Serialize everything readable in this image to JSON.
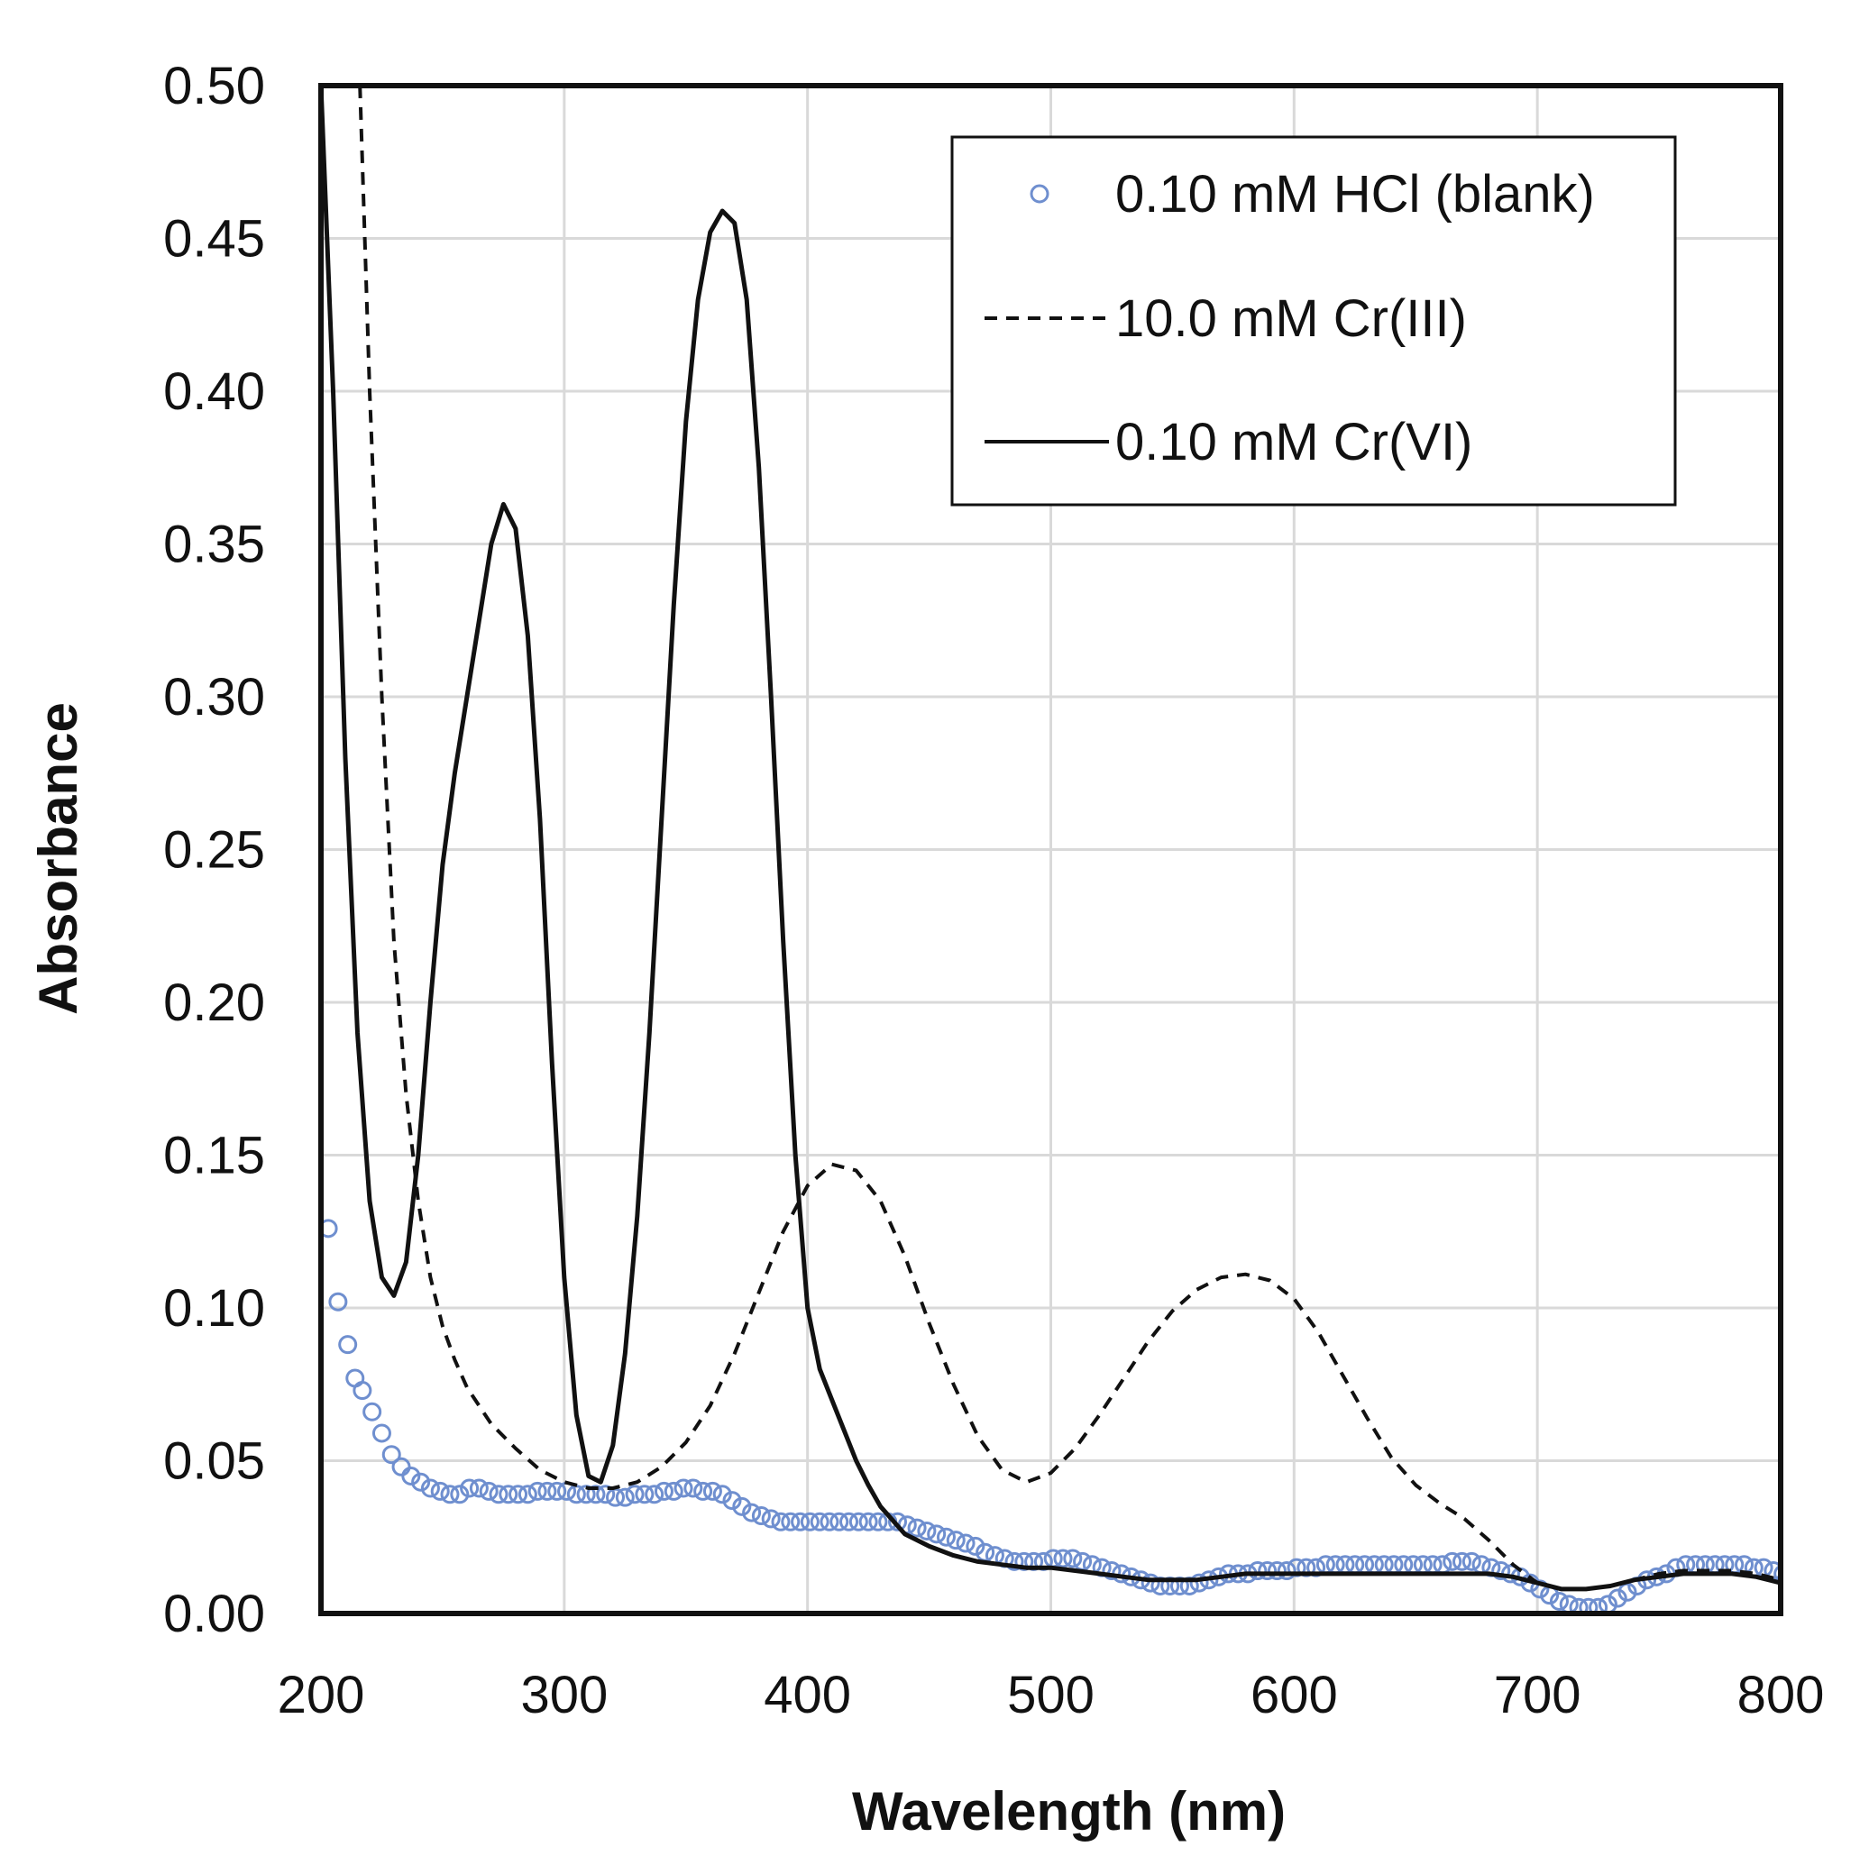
{
  "chart_data": {
    "type": "line",
    "title": "",
    "xlabel": "Wavelength (nm)",
    "ylabel": "Absorbance",
    "xlim": [
      200,
      800
    ],
    "ylim": [
      0,
      0.5
    ],
    "x_ticks": [
      200,
      300,
      400,
      500,
      600,
      700,
      800
    ],
    "y_ticks": [
      0,
      0.05,
      0.1,
      0.15,
      0.2,
      0.25,
      0.3,
      0.35,
      0.4,
      0.45,
      0.5
    ],
    "x_tick_labels": [
      "200",
      "300",
      "400",
      "500",
      "600",
      "700",
      "800"
    ],
    "y_tick_labels": [
      "0.00",
      "0.05",
      "0.10",
      "0.15",
      "0.20",
      "0.25",
      "0.30",
      "0.35",
      "0.40",
      "0.45",
      "0.50"
    ],
    "grid": true,
    "legend_position": "top-right",
    "series": [
      {
        "name": "0.10 mM HCl (blank)",
        "style": "markers",
        "marker": "open-circle",
        "color": "#6f8fcf",
        "points": [
          [
            203,
            0.126
          ],
          [
            207,
            0.102
          ],
          [
            211,
            0.088
          ],
          [
            214,
            0.077
          ],
          [
            217,
            0.073
          ],
          [
            221,
            0.066
          ],
          [
            225,
            0.059
          ],
          [
            229,
            0.052
          ],
          [
            233,
            0.048
          ],
          [
            237,
            0.045
          ],
          [
            241,
            0.043
          ],
          [
            245,
            0.041
          ],
          [
            249,
            0.04
          ],
          [
            253,
            0.039
          ],
          [
            257,
            0.039
          ],
          [
            261,
            0.041
          ],
          [
            265,
            0.041
          ],
          [
            269,
            0.04
          ],
          [
            273,
            0.039
          ],
          [
            277,
            0.039
          ],
          [
            281,
            0.039
          ],
          [
            285,
            0.039
          ],
          [
            289,
            0.04
          ],
          [
            293,
            0.04
          ],
          [
            297,
            0.04
          ],
          [
            301,
            0.04
          ],
          [
            305,
            0.039
          ],
          [
            309,
            0.039
          ],
          [
            313,
            0.039
          ],
          [
            317,
            0.039
          ],
          [
            321,
            0.038
          ],
          [
            325,
            0.038
          ],
          [
            329,
            0.039
          ],
          [
            333,
            0.039
          ],
          [
            337,
            0.039
          ],
          [
            341,
            0.04
          ],
          [
            345,
            0.04
          ],
          [
            349,
            0.041
          ],
          [
            353,
            0.041
          ],
          [
            357,
            0.04
          ],
          [
            361,
            0.04
          ],
          [
            365,
            0.039
          ],
          [
            369,
            0.037
          ],
          [
            373,
            0.035
          ],
          [
            377,
            0.033
          ],
          [
            381,
            0.032
          ],
          [
            385,
            0.031
          ],
          [
            389,
            0.03
          ],
          [
            393,
            0.03
          ],
          [
            397,
            0.03
          ],
          [
            401,
            0.03
          ],
          [
            405,
            0.03
          ],
          [
            409,
            0.03
          ],
          [
            413,
            0.03
          ],
          [
            417,
            0.03
          ],
          [
            421,
            0.03
          ],
          [
            425,
            0.03
          ],
          [
            429,
            0.03
          ],
          [
            433,
            0.03
          ],
          [
            437,
            0.03
          ],
          [
            441,
            0.029
          ],
          [
            445,
            0.028
          ],
          [
            449,
            0.027
          ],
          [
            453,
            0.026
          ],
          [
            457,
            0.025
          ],
          [
            461,
            0.024
          ],
          [
            465,
            0.023
          ],
          [
            469,
            0.022
          ],
          [
            473,
            0.02
          ],
          [
            477,
            0.019
          ],
          [
            481,
            0.018
          ],
          [
            485,
            0.017
          ],
          [
            489,
            0.017
          ],
          [
            493,
            0.017
          ],
          [
            497,
            0.017
          ],
          [
            501,
            0.018
          ],
          [
            505,
            0.018
          ],
          [
            509,
            0.018
          ],
          [
            513,
            0.017
          ],
          [
            517,
            0.016
          ],
          [
            521,
            0.015
          ],
          [
            525,
            0.014
          ],
          [
            529,
            0.013
          ],
          [
            533,
            0.012
          ],
          [
            537,
            0.011
          ],
          [
            541,
            0.01
          ],
          [
            545,
            0.009
          ],
          [
            549,
            0.009
          ],
          [
            553,
            0.009
          ],
          [
            557,
            0.009
          ],
          [
            561,
            0.01
          ],
          [
            565,
            0.011
          ],
          [
            569,
            0.012
          ],
          [
            573,
            0.013
          ],
          [
            577,
            0.013
          ],
          [
            581,
            0.013
          ],
          [
            585,
            0.014
          ],
          [
            589,
            0.014
          ],
          [
            593,
            0.014
          ],
          [
            597,
            0.014
          ],
          [
            601,
            0.015
          ],
          [
            605,
            0.015
          ],
          [
            609,
            0.015
          ],
          [
            613,
            0.016
          ],
          [
            617,
            0.016
          ],
          [
            621,
            0.016
          ],
          [
            625,
            0.016
          ],
          [
            629,
            0.016
          ],
          [
            633,
            0.016
          ],
          [
            637,
            0.016
          ],
          [
            641,
            0.016
          ],
          [
            645,
            0.016
          ],
          [
            649,
            0.016
          ],
          [
            653,
            0.016
          ],
          [
            657,
            0.016
          ],
          [
            661,
            0.016
          ],
          [
            665,
            0.017
          ],
          [
            669,
            0.017
          ],
          [
            673,
            0.017
          ],
          [
            677,
            0.016
          ],
          [
            681,
            0.015
          ],
          [
            685,
            0.014
          ],
          [
            689,
            0.013
          ],
          [
            693,
            0.012
          ],
          [
            697,
            0.01
          ],
          [
            701,
            0.008
          ],
          [
            705,
            0.006
          ],
          [
            709,
            0.004
          ],
          [
            713,
            0.003
          ],
          [
            717,
            0.002
          ],
          [
            721,
            0.002
          ],
          [
            725,
            0.002
          ],
          [
            729,
            0.003
          ],
          [
            733,
            0.005
          ],
          [
            737,
            0.007
          ],
          [
            741,
            0.009
          ],
          [
            745,
            0.011
          ],
          [
            749,
            0.012
          ],
          [
            753,
            0.013
          ],
          [
            757,
            0.015
          ],
          [
            761,
            0.016
          ],
          [
            765,
            0.016
          ],
          [
            769,
            0.016
          ],
          [
            773,
            0.016
          ],
          [
            777,
            0.016
          ],
          [
            781,
            0.016
          ],
          [
            785,
            0.016
          ],
          [
            789,
            0.015
          ],
          [
            793,
            0.015
          ],
          [
            797,
            0.014
          ],
          [
            801,
            0.013
          ]
        ]
      },
      {
        "name": "10.0 mM Cr(III)",
        "style": "dashed",
        "color": "#111111",
        "points": [
          [
            216,
            0.5
          ],
          [
            220,
            0.4
          ],
          [
            225,
            0.3
          ],
          [
            230,
            0.22
          ],
          [
            235,
            0.17
          ],
          [
            240,
            0.135
          ],
          [
            245,
            0.11
          ],
          [
            250,
            0.094
          ],
          [
            255,
            0.083
          ],
          [
            260,
            0.074
          ],
          [
            270,
            0.062
          ],
          [
            280,
            0.054
          ],
          [
            290,
            0.047
          ],
          [
            300,
            0.043
          ],
          [
            310,
            0.041
          ],
          [
            320,
            0.041
          ],
          [
            330,
            0.043
          ],
          [
            340,
            0.048
          ],
          [
            350,
            0.056
          ],
          [
            360,
            0.068
          ],
          [
            370,
            0.085
          ],
          [
            380,
            0.105
          ],
          [
            390,
            0.125
          ],
          [
            400,
            0.14
          ],
          [
            410,
            0.147
          ],
          [
            420,
            0.145
          ],
          [
            430,
            0.135
          ],
          [
            440,
            0.117
          ],
          [
            450,
            0.095
          ],
          [
            460,
            0.075
          ],
          [
            470,
            0.058
          ],
          [
            480,
            0.047
          ],
          [
            490,
            0.043
          ],
          [
            500,
            0.046
          ],
          [
            510,
            0.054
          ],
          [
            520,
            0.065
          ],
          [
            530,
            0.077
          ],
          [
            540,
            0.089
          ],
          [
            550,
            0.099
          ],
          [
            560,
            0.106
          ],
          [
            570,
            0.11
          ],
          [
            580,
            0.111
          ],
          [
            590,
            0.109
          ],
          [
            600,
            0.103
          ],
          [
            610,
            0.092
          ],
          [
            620,
            0.078
          ],
          [
            630,
            0.064
          ],
          [
            640,
            0.051
          ],
          [
            650,
            0.042
          ],
          [
            660,
            0.036
          ],
          [
            670,
            0.031
          ],
          [
            680,
            0.024
          ],
          [
            690,
            0.016
          ],
          [
            700,
            0.01
          ],
          [
            710,
            0.008
          ],
          [
            720,
            0.008
          ],
          [
            730,
            0.009
          ],
          [
            740,
            0.011
          ],
          [
            750,
            0.013
          ],
          [
            760,
            0.014
          ],
          [
            770,
            0.014
          ],
          [
            780,
            0.014
          ],
          [
            790,
            0.013
          ],
          [
            800,
            0.011
          ]
        ]
      },
      {
        "name": "0.10 mM Cr(VI)",
        "style": "solid",
        "color": "#111111",
        "points": [
          [
            200,
            0.5
          ],
          [
            205,
            0.4
          ],
          [
            210,
            0.28
          ],
          [
            215,
            0.19
          ],
          [
            220,
            0.135
          ],
          [
            225,
            0.11
          ],
          [
            230,
            0.104
          ],
          [
            235,
            0.115
          ],
          [
            240,
            0.15
          ],
          [
            245,
            0.2
          ],
          [
            250,
            0.245
          ],
          [
            255,
            0.275
          ],
          [
            260,
            0.3
          ],
          [
            265,
            0.325
          ],
          [
            270,
            0.35
          ],
          [
            275,
            0.363
          ],
          [
            280,
            0.355
          ],
          [
            285,
            0.32
          ],
          [
            290,
            0.26
          ],
          [
            295,
            0.18
          ],
          [
            300,
            0.11
          ],
          [
            305,
            0.065
          ],
          [
            310,
            0.045
          ],
          [
            315,
            0.043
          ],
          [
            320,
            0.055
          ],
          [
            325,
            0.085
          ],
          [
            330,
            0.13
          ],
          [
            335,
            0.19
          ],
          [
            340,
            0.26
          ],
          [
            345,
            0.33
          ],
          [
            350,
            0.39
          ],
          [
            355,
            0.43
          ],
          [
            360,
            0.452
          ],
          [
            365,
            0.459
          ],
          [
            370,
            0.455
          ],
          [
            375,
            0.43
          ],
          [
            380,
            0.375
          ],
          [
            385,
            0.3
          ],
          [
            390,
            0.22
          ],
          [
            395,
            0.15
          ],
          [
            400,
            0.1
          ],
          [
            405,
            0.08
          ],
          [
            410,
            0.07
          ],
          [
            415,
            0.06
          ],
          [
            420,
            0.05
          ],
          [
            425,
            0.042
          ],
          [
            430,
            0.035
          ],
          [
            440,
            0.026
          ],
          [
            450,
            0.022
          ],
          [
            460,
            0.019
          ],
          [
            470,
            0.017
          ],
          [
            480,
            0.016
          ],
          [
            490,
            0.015
          ],
          [
            500,
            0.015
          ],
          [
            510,
            0.014
          ],
          [
            520,
            0.013
          ],
          [
            530,
            0.012
          ],
          [
            540,
            0.011
          ],
          [
            550,
            0.011
          ],
          [
            560,
            0.011
          ],
          [
            570,
            0.012
          ],
          [
            580,
            0.013
          ],
          [
            590,
            0.013
          ],
          [
            600,
            0.013
          ],
          [
            620,
            0.013
          ],
          [
            640,
            0.013
          ],
          [
            660,
            0.013
          ],
          [
            680,
            0.013
          ],
          [
            690,
            0.012
          ],
          [
            700,
            0.01
          ],
          [
            710,
            0.008
          ],
          [
            720,
            0.008
          ],
          [
            730,
            0.009
          ],
          [
            740,
            0.011
          ],
          [
            750,
            0.012
          ],
          [
            760,
            0.013
          ],
          [
            770,
            0.013
          ],
          [
            780,
            0.013
          ],
          [
            790,
            0.012
          ],
          [
            800,
            0.01
          ]
        ]
      }
    ]
  }
}
